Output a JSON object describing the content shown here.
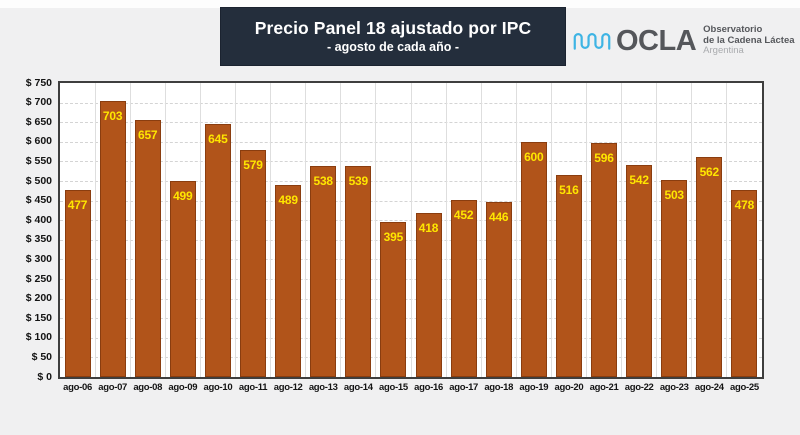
{
  "header": {
    "title": "Precio Panel 18 ajustado por IPC",
    "subtitle": "- agosto de cada año -"
  },
  "logo": {
    "brand": "OCLA",
    "org_line1": "Observatorio",
    "org_line2": "de la Cadena Láctea",
    "org_line3": "Argentina"
  },
  "chart_data": {
    "type": "bar",
    "title": "Precio Panel 18 ajustado por IPC",
    "subtitle": "- agosto de cada año -",
    "categories": [
      "ago-06",
      "ago-07",
      "ago-08",
      "ago-09",
      "ago-10",
      "ago-11",
      "ago-12",
      "ago-13",
      "ago-14",
      "ago-15",
      "ago-16",
      "ago-17",
      "ago-18",
      "ago-19",
      "ago-20",
      "ago-21",
      "ago-22",
      "ago-23",
      "ago-24",
      "ago-25"
    ],
    "values": [
      477,
      703,
      657,
      499,
      645,
      579,
      489,
      538,
      539,
      395,
      418,
      452,
      446,
      600,
      516,
      596,
      542,
      503,
      562,
      478
    ],
    "xlabel": "",
    "ylabel": "",
    "ylim": [
      0,
      750
    ],
    "ytick_step": 50,
    "ytick_prefix": "$ ",
    "grid": "horizontal-dashed and vertical-solid",
    "legend": "none",
    "value_labels": "inside-top, yellow",
    "colors": {
      "bar_fill": "#B1541A",
      "bar_border": "#8A3D0F",
      "value_label": "#FFE600",
      "title_bg": "#242E3C",
      "title_text": "#FFFFFF",
      "logo_accent": "#3EB4E4",
      "logo_text": "#55575B",
      "logo_muted": "#A9ABAE",
      "background": "#F0F0F1",
      "plot_bg": "#FFFFFF",
      "plot_border": "#3E3E3E"
    }
  }
}
